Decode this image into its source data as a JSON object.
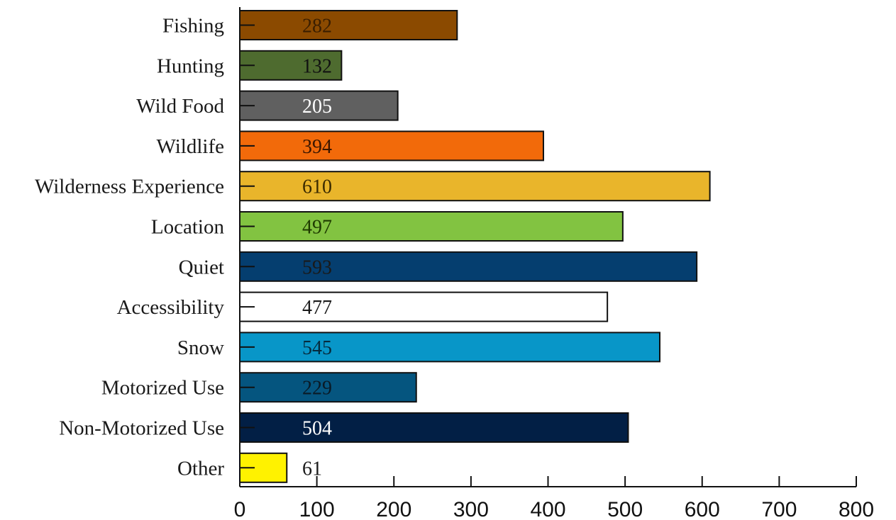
{
  "chart_data": {
    "type": "bar",
    "orientation": "horizontal",
    "categories": [
      "Fishing",
      "Hunting",
      "Wild Food",
      "Wildlife",
      "Wilderness Experience",
      "Location",
      "Quiet",
      "Accessibility",
      "Snow",
      "Motorized Use",
      "Non-Motorized Use",
      "Other"
    ],
    "values": [
      282,
      132,
      205,
      394,
      610,
      497,
      593,
      477,
      545,
      229,
      504,
      61
    ],
    "data_labels": [
      "282",
      "132",
      "205",
      "394",
      "610",
      "497",
      "593",
      "477",
      "545",
      "229",
      "504",
      "61"
    ],
    "colors": [
      "#8B4A00",
      "#4E6B2F",
      "#606060",
      "#F26A0A",
      "#E9B52B",
      "#82C341",
      "#053E6F",
      "#FFFFFF",
      "#0896C8",
      "#05557F",
      "#021F45",
      "#FFF200"
    ],
    "label_colors": [
      "#3a1e00",
      "#111111",
      "#ffffff",
      "#3a1600",
      "#3a2a00",
      "#1e3a00",
      "#1a1a1a",
      "#1a1a1a",
      "#062b3d",
      "#0a1a26",
      "#ffffff",
      "#1a1a1a"
    ],
    "xlim": [
      0,
      800
    ],
    "xticks": [
      "0",
      "100",
      "200",
      "300",
      "400",
      "500",
      "600",
      "700",
      "800"
    ],
    "title": "",
    "xlabel": "",
    "ylabel": "",
    "grid": false,
    "legend": "none"
  }
}
